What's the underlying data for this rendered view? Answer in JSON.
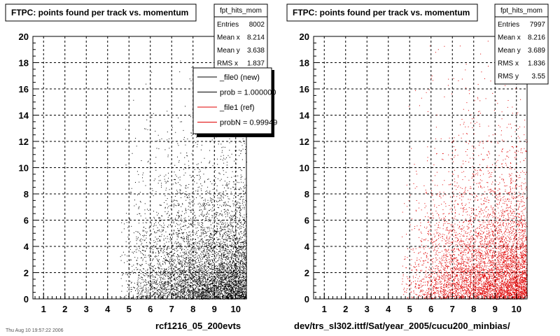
{
  "chart_data": [
    {
      "type": "scatter",
      "title": "FTPC: points found per track vs. momentum",
      "xlabel": "rcf1216_05_200evts",
      "ylabel": "",
      "xlim": [
        0.5,
        10.5
      ],
      "ylim": [
        0,
        20
      ],
      "x_ticks": [
        "1",
        "2",
        "3",
        "4",
        "5",
        "6",
        "7",
        "8",
        "9",
        "10"
      ],
      "y_ticks": [
        "0",
        "2",
        "4",
        "6",
        "8",
        "10",
        "12",
        "14",
        "16",
        "18",
        "20"
      ],
      "grid": true,
      "marker_color": "#000000",
      "stats": {
        "name": "fpt_hits_mom",
        "rows": [
          {
            "label": "Entries",
            "value": "8002"
          },
          {
            "label": "Mean x",
            "value": "8.214"
          },
          {
            "label": "Mean y",
            "value": "3.638"
          },
          {
            "label": "RMS x",
            "value": "1.837"
          }
        ]
      },
      "legend": [
        {
          "label": "_file0 (new)",
          "color": "#000000"
        },
        {
          "label": "prob = 1.000000",
          "color": "#000000"
        },
        {
          "label": "_file1 (ref)",
          "color": "#e00000"
        },
        {
          "label": "probN = 0.99949",
          "color": "#e00000"
        }
      ],
      "distribution": {
        "x_start": 4.5,
        "x_end": 10.5,
        "density_peak_y": 0.5,
        "entries": 8002
      }
    },
    {
      "type": "scatter",
      "title": "FTPC: points found per track vs. momentum",
      "xlabel": "dev/trs_sl302.ittf/Sat/year_2005/cucu200_minbias/",
      "ylabel": "",
      "xlim": [
        0.5,
        10.5
      ],
      "ylim": [
        0,
        20
      ],
      "x_ticks": [
        "1",
        "2",
        "3",
        "4",
        "5",
        "6",
        "7",
        "8",
        "9",
        "10"
      ],
      "y_ticks": [
        "0",
        "2",
        "4",
        "6",
        "8",
        "10",
        "12",
        "14",
        "16",
        "18",
        "20"
      ],
      "grid": true,
      "marker_color": "#e00000",
      "stats": {
        "name": "fpt_hits_mom",
        "rows": [
          {
            "label": "Entries",
            "value": "7997"
          },
          {
            "label": "Mean x",
            "value": "8.216"
          },
          {
            "label": "Mean y",
            "value": "3.689"
          },
          {
            "label": "RMS x",
            "value": "1.836"
          },
          {
            "label": "RMS y",
            "value": "3.55"
          }
        ]
      },
      "distribution": {
        "x_start": 4.5,
        "x_end": 10.5,
        "density_peak_y": 0.5,
        "entries": 7997
      }
    }
  ],
  "footer_date": "Thu Aug 10 19:57:22 2006"
}
